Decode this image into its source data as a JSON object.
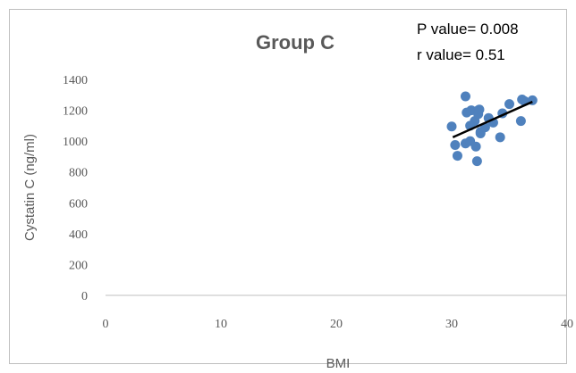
{
  "chart_data": {
    "type": "scatter",
    "title": "Group C",
    "annotations": [
      "P value= 0.008",
      "r value= 0.51"
    ],
    "xlabel": "BMI",
    "ylabel": "Cystatin C (ng/ml)",
    "xlim": [
      0,
      40
    ],
    "ylim": [
      0,
      1400
    ],
    "xticks": [
      0,
      10,
      20,
      30,
      40
    ],
    "yticks": [
      0,
      200,
      400,
      600,
      800,
      1000,
      1200,
      1400
    ],
    "grid": false,
    "marker_color": "#4f81bd",
    "trendline": {
      "x": [
        30.1,
        37.0
      ],
      "y": [
        1025,
        1255
      ],
      "color": "#000000"
    },
    "series": [
      {
        "x": [
          31.2,
          30.0,
          31.3,
          31.7,
          32.0,
          32.3,
          31.6,
          32.5,
          33.2,
          34.4,
          35.0,
          36.1,
          36.3,
          37.0,
          32.3,
          32.5,
          33.6,
          30.3,
          30.5,
          31.2,
          31.6,
          32.1,
          32.2,
          34.2,
          36.0,
          32.9,
          32.4
        ],
        "y": [
          1290,
          1095,
          1185,
          1200,
          1130,
          1200,
          1100,
          1050,
          1150,
          1180,
          1240,
          1270,
          1260,
          1265,
          1175,
          1060,
          1120,
          975,
          905,
          985,
          1000,
          965,
          870,
          1025,
          1130,
          1090,
          1205
        ]
      }
    ]
  }
}
